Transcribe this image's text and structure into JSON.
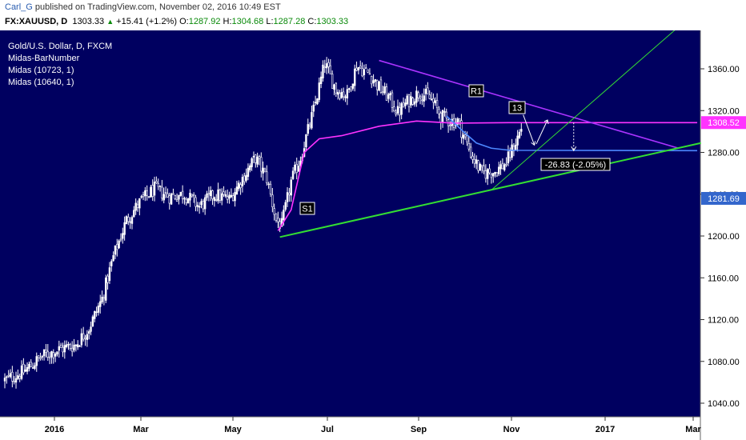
{
  "header": {
    "user": "Carl_G",
    "published_text": "published on TradingView.com, November 02, 2016 10:49 EST",
    "symbol": "FX:XAUUSD, D",
    "price": "1303.33",
    "change": "+15.41 (+1.2%)",
    "open_label": "O:",
    "open": "1287.92",
    "high_label": "H:",
    "high": "1304.68",
    "low_label": "L:",
    "low": "1287.28",
    "close_label": "C:",
    "close": "1303.33"
  },
  "legend": {
    "line1": "Gold/U.S. Dollar, D, FXCM",
    "line2": "Midas-BarNumber",
    "line3": "Midas (10723, 1)",
    "line4": "Midas (10640, 1)"
  },
  "annotations": {
    "s1": "S1",
    "r1": "R1",
    "bar13": "13",
    "measure": "-26.83 (-2.05%)"
  },
  "price_tags": {
    "midas_upper": "1308.52",
    "midas_lower": "1281.69"
  },
  "colors": {
    "background": "#000060",
    "candles": "#ffffff",
    "midas_upper": "#ff33ff",
    "midas_lower": "#4d88ff",
    "resistance_line": "#aa33ff",
    "support_line": "#33dd33",
    "tag_upper": "#ff33ff",
    "tag_lower": "#3366cc"
  },
  "chart_data": {
    "type": "candlestick",
    "title": "Gold/U.S. Dollar, D, FXCM",
    "y_ticks": [
      1040,
      1080,
      1120,
      1160,
      1200,
      1240,
      1280,
      1320,
      1360
    ],
    "y_tick_labels": [
      "1040.00",
      "1080.00",
      "1120.00",
      "1160.00",
      "1200.00",
      "1240.00",
      "1280.00",
      "1320.00",
      "1360.00"
    ],
    "x_ticks": [
      "2016",
      "Mar",
      "May",
      "Jul",
      "Sep",
      "Nov",
      "2017",
      "Mar"
    ],
    "ylim": [
      1030,
      1390
    ],
    "price_path": [
      [
        0,
        1062
      ],
      [
        10,
        1070
      ],
      [
        20,
        1085
      ],
      [
        30,
        1092
      ],
      [
        38,
        1096
      ],
      [
        45,
        1112
      ],
      [
        52,
        1140
      ],
      [
        58,
        1180
      ],
      [
        65,
        1215
      ],
      [
        72,
        1232
      ],
      [
        80,
        1245
      ],
      [
        88,
        1238
      ],
      [
        96,
        1240
      ],
      [
        104,
        1228
      ],
      [
        112,
        1240
      ],
      [
        120,
        1235
      ],
      [
        128,
        1258
      ],
      [
        134,
        1275
      ],
      [
        140,
        1255
      ],
      [
        145,
        1215
      ],
      [
        148,
        1210
      ],
      [
        153,
        1252
      ],
      [
        158,
        1275
      ],
      [
        165,
        1320
      ],
      [
        171,
        1365
      ],
      [
        177,
        1340
      ],
      [
        183,
        1335
      ],
      [
        188,
        1363
      ],
      [
        195,
        1355
      ],
      [
        200,
        1342
      ],
      [
        205,
        1333
      ],
      [
        210,
        1318
      ],
      [
        216,
        1330
      ],
      [
        222,
        1338
      ],
      [
        228,
        1330
      ],
      [
        233,
        1315
      ],
      [
        238,
        1310
      ],
      [
        242,
        1310
      ],
      [
        250,
        1275
      ],
      [
        255,
        1260
      ],
      [
        262,
        1262
      ],
      [
        268,
        1270
      ],
      [
        273,
        1290
      ],
      [
        276,
        1303
      ]
    ],
    "midas_upper": [
      [
        146,
        1205
      ],
      [
        153,
        1225
      ],
      [
        160,
        1280
      ],
      [
        168,
        1293
      ],
      [
        180,
        1296
      ],
      [
        200,
        1305
      ],
      [
        220,
        1310
      ],
      [
        240,
        1308
      ],
      [
        270,
        1308.5
      ],
      [
        370,
        1308.5
      ]
    ],
    "midas_lower": [
      [
        236,
        1315
      ],
      [
        245,
        1300
      ],
      [
        252,
        1289
      ],
      [
        260,
        1284
      ],
      [
        270,
        1282
      ],
      [
        370,
        1281.7
      ]
    ],
    "resistance_line": [
      [
        200,
        1368
      ],
      [
        360,
        1284
      ]
    ],
    "support_line": [
      [
        147,
        1199
      ],
      [
        372,
        1289
      ]
    ],
    "channel_line": [
      [
        260,
        1244
      ],
      [
        358,
        1397
      ]
    ],
    "measure": {
      "from": 1308.52,
      "to": 1281.69,
      "label": "-26.83 (-2.05%)"
    },
    "grid": false
  }
}
